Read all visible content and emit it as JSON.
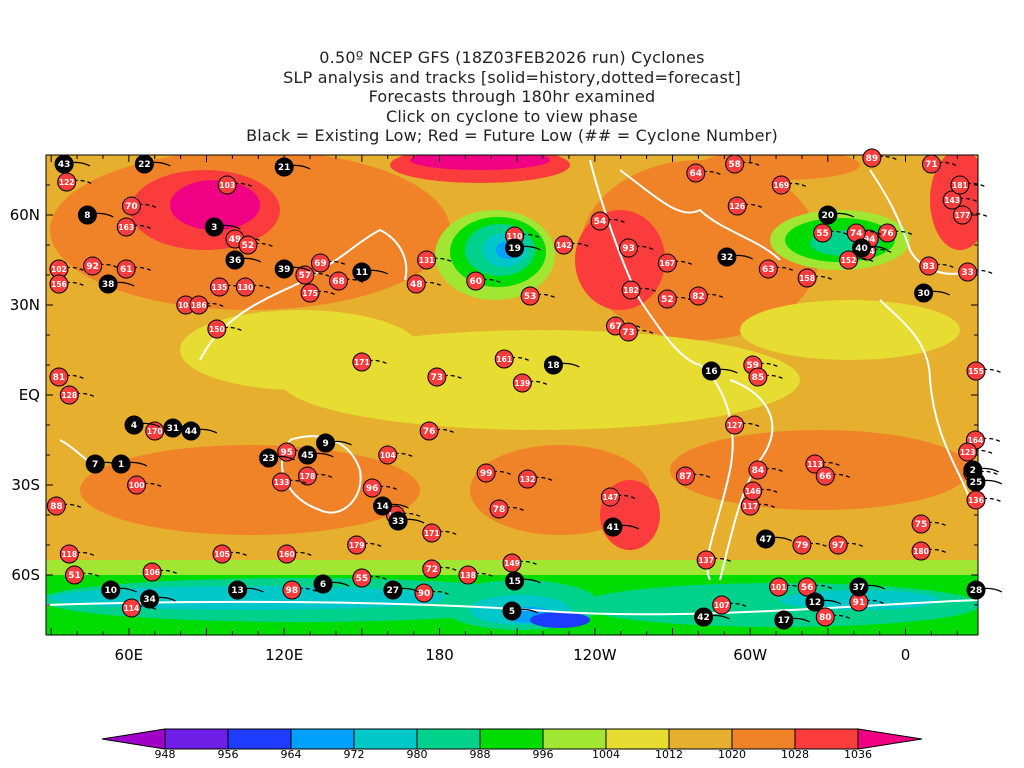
{
  "titles": [
    "0.50º NCEP GFS (18Z03FEB2026 run) Cyclones",
    "SLP analysis and tracks [solid=history,dotted=forecast]",
    "Forecasts through 180hr examined",
    "Click on cyclone to view phase",
    "Black = Existing Low; Red = Future Low (## = Cyclone Number)"
  ],
  "axes": {
    "x_ticks": [
      "60E",
      "120E",
      "180",
      "120W",
      "60W",
      "0"
    ],
    "y_ticks": [
      "60N",
      "30N",
      "EQ",
      "30S",
      "60S"
    ]
  },
  "colorbar": {
    "levels": [
      "948",
      "956",
      "964",
      "972",
      "980",
      "988",
      "996",
      "1004",
      "1012",
      "1020",
      "1028",
      "1036"
    ],
    "colors": [
      "#a000c8",
      "#6e1ee6",
      "#1e3cff",
      "#00a0ff",
      "#00c8c8",
      "#00d28c",
      "#00dc00",
      "#a0e632",
      "#e6dc32",
      "#e6af2d",
      "#f08228",
      "#fa3c3c",
      "#f00082"
    ]
  },
  "existing_lows": [
    {
      "id": "43",
      "lon": 35,
      "lat": 77
    },
    {
      "id": "22",
      "lon": 66,
      "lat": 77
    },
    {
      "id": "21",
      "lon": 120,
      "lat": 76
    },
    {
      "id": "8",
      "lon": 44,
      "lat": 60
    },
    {
      "id": "3",
      "lon": 93,
      "lat": 56
    },
    {
      "id": "36",
      "lon": 101,
      "lat": 45
    },
    {
      "id": "38",
      "lon": 52,
      "lat": 37
    },
    {
      "id": "39",
      "lon": 120,
      "lat": 42
    },
    {
      "id": "11",
      "lon": 150,
      "lat": 41
    },
    {
      "id": "19",
      "lon": 209,
      "lat": 49
    },
    {
      "id": "32",
      "lon": 291,
      "lat": 46
    },
    {
      "id": "20",
      "lon": 330,
      "lat": 60
    },
    {
      "id": "40",
      "lon": 343,
      "lat": 49
    },
    {
      "id": "30",
      "lon": 367,
      "lat": 34
    },
    {
      "id": "18",
      "lon": 224,
      "lat": 10
    },
    {
      "id": "16",
      "lon": 285,
      "lat": 8
    },
    {
      "id": "4",
      "lon": 62,
      "lat": -10
    },
    {
      "id": "31",
      "lon": 77,
      "lat": -11
    },
    {
      "id": "44",
      "lon": 84,
      "lat": -12
    },
    {
      "id": "7",
      "lon": 47,
      "lat": -23
    },
    {
      "id": "1",
      "lon": 57,
      "lat": -23
    },
    {
      "id": "9",
      "lon": 136,
      "lat": -16
    },
    {
      "id": "23",
      "lon": 114,
      "lat": -21
    },
    {
      "id": "45",
      "lon": 129,
      "lat": -20
    },
    {
      "id": "14",
      "lon": 158,
      "lat": -37
    },
    {
      "id": "33",
      "lon": 164,
      "lat": -42
    },
    {
      "id": "41",
      "lon": 247,
      "lat": -44
    },
    {
      "id": "47",
      "lon": 306,
      "lat": -48
    },
    {
      "id": "2",
      "lon": 386,
      "lat": -25
    },
    {
      "id": "25",
      "lon": 390,
      "lat": -29
    },
    {
      "id": "6",
      "lon": 135,
      "lat": -63
    },
    {
      "id": "27",
      "lon": 162,
      "lat": -65
    },
    {
      "id": "15",
      "lon": 209,
      "lat": -62
    },
    {
      "id": "10",
      "lon": 53,
      "lat": -65
    },
    {
      "id": "34",
      "lon": 68,
      "lat": -68
    },
    {
      "id": "13",
      "lon": 102,
      "lat": -65
    },
    {
      "id": "5",
      "lon": 208,
      "lat": -72
    },
    {
      "id": "42",
      "lon": 282,
      "lat": -74
    },
    {
      "id": "37",
      "lon": 342,
      "lat": -64
    },
    {
      "id": "28",
      "lon": 390,
      "lat": -65
    },
    {
      "id": "12",
      "lon": 325,
      "lat": -69
    },
    {
      "id": "17",
      "lon": 313,
      "lat": -75
    }
  ],
  "future_lows": [
    {
      "id": "122",
      "lon": 36,
      "lat": 71
    },
    {
      "id": "70",
      "lon": 61,
      "lat": 63
    },
    {
      "id": "103",
      "lon": 98,
      "lat": 70
    },
    {
      "id": "163",
      "lon": 59,
      "lat": 56
    },
    {
      "id": "102",
      "lon": 33,
      "lat": 42
    },
    {
      "id": "92",
      "lon": 46,
      "lat": 43
    },
    {
      "id": "61",
      "lon": 59,
      "lat": 42
    },
    {
      "id": "156",
      "lon": 33,
      "lat": 37
    },
    {
      "id": "108",
      "lon": 82,
      "lat": 30
    },
    {
      "id": "186",
      "lon": 87,
      "lat": 30
    },
    {
      "id": "135",
      "lon": 95,
      "lat": 36
    },
    {
      "id": "150",
      "lon": 94,
      "lat": 22
    },
    {
      "id": "49",
      "lon": 101,
      "lat": 52
    },
    {
      "id": "52",
      "lon": 106,
      "lat": 50
    },
    {
      "id": "57",
      "lon": 128,
      "lat": 40
    },
    {
      "id": "69",
      "lon": 134,
      "lat": 44
    },
    {
      "id": "175",
      "lon": 130,
      "lat": 34
    },
    {
      "id": "131",
      "lon": 175,
      "lat": 45
    },
    {
      "id": "110",
      "lon": 209,
      "lat": 53
    },
    {
      "id": "142",
      "lon": 228,
      "lat": 50
    },
    {
      "id": "60",
      "lon": 194,
      "lat": 38
    },
    {
      "id": "48",
      "lon": 171,
      "lat": 37
    },
    {
      "id": "68",
      "lon": 141,
      "lat": 38
    },
    {
      "id": "130",
      "lon": 105,
      "lat": 36
    },
    {
      "id": "53",
      "lon": 215,
      "lat": 33
    },
    {
      "id": "93",
      "lon": 253,
      "lat": 49
    },
    {
      "id": "54",
      "lon": 242,
      "lat": 58
    },
    {
      "id": "182",
      "lon": 254,
      "lat": 35
    },
    {
      "id": "167",
      "lon": 268,
      "lat": 44
    },
    {
      "id": "52",
      "lon": 268,
      "lat": 32
    },
    {
      "id": "82",
      "lon": 280,
      "lat": 33
    },
    {
      "id": "63",
      "lon": 307,
      "lat": 42
    },
    {
      "id": "158",
      "lon": 322,
      "lat": 39
    },
    {
      "id": "154",
      "lon": 345,
      "lat": 48
    },
    {
      "id": "94",
      "lon": 346,
      "lat": 52
    },
    {
      "id": "76",
      "lon": 353,
      "lat": 54
    },
    {
      "id": "74",
      "lon": 341,
      "lat": 54
    },
    {
      "id": "55",
      "lon": 328,
      "lat": 54
    },
    {
      "id": "152",
      "lon": 338,
      "lat": 45
    },
    {
      "id": "83",
      "lon": 369,
      "lat": 43
    },
    {
      "id": "143",
      "lon": 378,
      "lat": 65
    },
    {
      "id": "177",
      "lon": 382,
      "lat": 60
    },
    {
      "id": "181",
      "lon": 381,
      "lat": 70
    },
    {
      "id": "71",
      "lon": 370,
      "lat": 77
    },
    {
      "id": "89",
      "lon": 347,
      "lat": 79
    },
    {
      "id": "58",
      "lon": 294,
      "lat": 77
    },
    {
      "id": "64",
      "lon": 279,
      "lat": 74
    },
    {
      "id": "169",
      "lon": 312,
      "lat": 70
    },
    {
      "id": "126",
      "lon": 295,
      "lat": 63
    },
    {
      "id": "67",
      "lon": 248,
      "lat": 23
    },
    {
      "id": "73",
      "lon": 253,
      "lat": 21
    },
    {
      "id": "161",
      "lon": 205,
      "lat": 12
    },
    {
      "id": "139",
      "lon": 212,
      "lat": 4
    },
    {
      "id": "73",
      "lon": 179,
      "lat": 6
    },
    {
      "id": "171",
      "lon": 150,
      "lat": 11
    },
    {
      "id": "81",
      "lon": 33,
      "lat": 6
    },
    {
      "id": "128",
      "lon": 37,
      "lat": 0
    },
    {
      "id": "170",
      "lon": 70,
      "lat": -12
    },
    {
      "id": "95",
      "lon": 121,
      "lat": -19
    },
    {
      "id": "104",
      "lon": 160,
      "lat": -20
    },
    {
      "id": "178",
      "lon": 129,
      "lat": -27
    },
    {
      "id": "133",
      "lon": 119,
      "lat": -29
    },
    {
      "id": "96",
      "lon": 154,
      "lat": -31
    },
    {
      "id": "134",
      "lon": 163,
      "lat": -40
    },
    {
      "id": "76",
      "lon": 176,
      "lat": -12
    },
    {
      "id": "99",
      "lon": 198,
      "lat": -26
    },
    {
      "id": "132",
      "lon": 214,
      "lat": -28
    },
    {
      "id": "78",
      "lon": 203,
      "lat": -38
    },
    {
      "id": "171",
      "lon": 177,
      "lat": -46
    },
    {
      "id": "100",
      "lon": 63,
      "lat": -30
    },
    {
      "id": "88",
      "lon": 32,
      "lat": -37
    },
    {
      "id": "118",
      "lon": 37,
      "lat": -53
    },
    {
      "id": "51",
      "lon": 39,
      "lat": -60
    },
    {
      "id": "105",
      "lon": 96,
      "lat": -53
    },
    {
      "id": "160",
      "lon": 121,
      "lat": -53
    },
    {
      "id": "179",
      "lon": 148,
      "lat": -50
    },
    {
      "id": "72",
      "lon": 177,
      "lat": -58
    },
    {
      "id": "138",
      "lon": 191,
      "lat": -60
    },
    {
      "id": "149",
      "lon": 208,
      "lat": -56
    },
    {
      "id": "55",
      "lon": 150,
      "lat": -61
    },
    {
      "id": "98",
      "lon": 123,
      "lat": -65
    },
    {
      "id": "90",
      "lon": 174,
      "lat": -66
    },
    {
      "id": "114",
      "lon": 61,
      "lat": -71
    },
    {
      "id": "106",
      "lon": 69,
      "lat": -59
    },
    {
      "id": "87",
      "lon": 275,
      "lat": -27
    },
    {
      "id": "147",
      "lon": 246,
      "lat": -34
    },
    {
      "id": "137",
      "lon": 283,
      "lat": -55
    },
    {
      "id": "117",
      "lon": 300,
      "lat": -37
    },
    {
      "id": "146",
      "lon": 301,
      "lat": -32
    },
    {
      "id": "84",
      "lon": 303,
      "lat": -25
    },
    {
      "id": "113",
      "lon": 325,
      "lat": -23
    },
    {
      "id": "66",
      "lon": 329,
      "lat": -27
    },
    {
      "id": "127",
      "lon": 294,
      "lat": -10
    },
    {
      "id": "59",
      "lon": 301,
      "lat": 10
    },
    {
      "id": "85",
      "lon": 303,
      "lat": 6
    },
    {
      "id": "79",
      "lon": 320,
      "lat": -50
    },
    {
      "id": "97",
      "lon": 334,
      "lat": -50
    },
    {
      "id": "75",
      "lon": 366,
      "lat": -43
    },
    {
      "id": "180",
      "lon": 366,
      "lat": -52
    },
    {
      "id": "101",
      "lon": 311,
      "lat": -64
    },
    {
      "id": "56",
      "lon": 322,
      "lat": -64
    },
    {
      "id": "107",
      "lon": 289,
      "lat": -70
    },
    {
      "id": "80",
      "lon": 329,
      "lat": -74
    },
    {
      "id": "91",
      "lon": 342,
      "lat": -69
    },
    {
      "id": "155",
      "lon": 388,
      "lat": 8
    },
    {
      "id": "164",
      "lon": 387,
      "lat": -15
    },
    {
      "id": "123",
      "lon": 384,
      "lat": -19
    },
    {
      "id": "65",
      "lon": 386,
      "lat": -26
    },
    {
      "id": "136",
      "lon": 390,
      "lat": -35
    },
    {
      "id": "33",
      "lon": 384,
      "lat": 41
    }
  ]
}
